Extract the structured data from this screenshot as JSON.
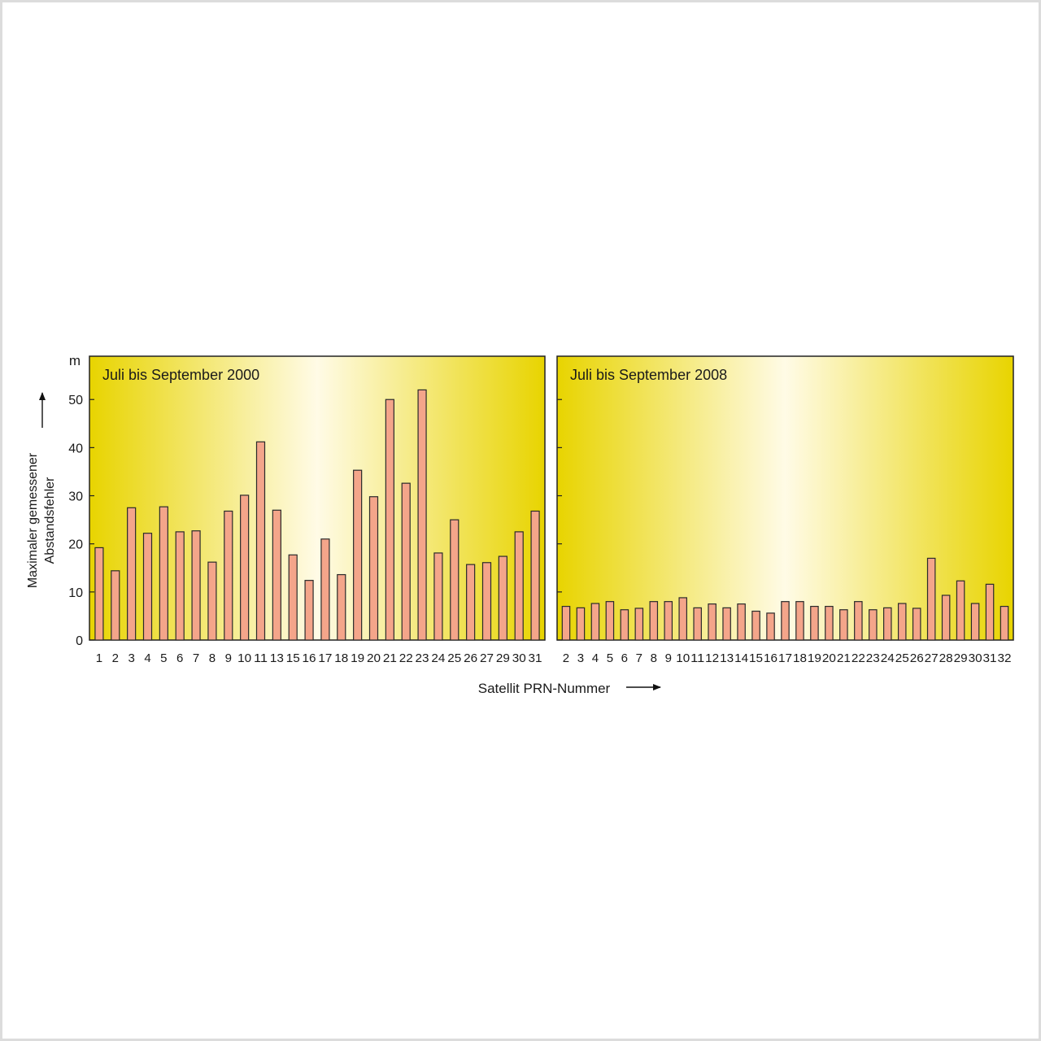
{
  "figure": {
    "y_axis_unit": "m",
    "y_axis_label_line1": "Maximaler gemessener",
    "y_axis_label_line2": "Abstandsfehler",
    "x_axis_label": "Satellit PRN-Nummer"
  },
  "colors": {
    "bar_fill": "#f4a58a",
    "bar_stroke": "#2a2a2a",
    "panel_edge": "#e8d400",
    "panel_center": "#fffbe6",
    "panel_border": "#222222"
  },
  "chart_data": [
    {
      "type": "bar",
      "title": "Juli bis September 2000",
      "xlabel": "Satellit PRN-Nummer",
      "ylabel": "Maximaler gemessener Abstandsfehler",
      "yunit": "m",
      "ylim": [
        0,
        59
      ],
      "yticks": [
        0,
        10,
        20,
        30,
        40,
        50
      ],
      "grid": false,
      "categories": [
        "1",
        "2",
        "3",
        "4",
        "5",
        "6",
        "7",
        "8",
        "9",
        "10",
        "11",
        "13",
        "15",
        "16",
        "17",
        "18",
        "19",
        "20",
        "21",
        "22",
        "23",
        "24",
        "25",
        "26",
        "27",
        "29",
        "30",
        "31"
      ],
      "values": [
        19.2,
        14.4,
        27.5,
        22.2,
        27.7,
        22.5,
        22.7,
        16.2,
        26.8,
        30.1,
        41.2,
        27.0,
        17.7,
        12.4,
        21.0,
        13.6,
        35.3,
        29.8,
        50.0,
        32.6,
        52.0,
        18.1,
        25.0,
        15.7,
        16.1,
        17.4,
        22.5,
        26.8
      ]
    },
    {
      "type": "bar",
      "title": "Juli bis September 2008",
      "xlabel": "Satellit PRN-Nummer",
      "ylabel": "Maximaler gemessener Abstandsfehler",
      "yunit": "m",
      "ylim": [
        0,
        59
      ],
      "yticks": [
        0,
        10,
        20,
        30,
        40,
        50
      ],
      "grid": false,
      "categories": [
        "2",
        "3",
        "4",
        "5",
        "6",
        "7",
        "8",
        "9",
        "10",
        "11",
        "12",
        "13",
        "14",
        "15",
        "16",
        "17",
        "18",
        "19",
        "20",
        "21",
        "22",
        "23",
        "24",
        "25",
        "26",
        "27",
        "28",
        "29",
        "30",
        "31",
        "32"
      ],
      "values": [
        7.0,
        6.7,
        7.6,
        8.0,
        6.3,
        6.6,
        8.0,
        8.0,
        8.8,
        6.7,
        7.5,
        6.7,
        7.5,
        6.0,
        5.6,
        8.0,
        8.0,
        7.0,
        7.0,
        6.3,
        8.0,
        6.3,
        6.7,
        7.6,
        6.6,
        17.0,
        9.3,
        12.3,
        7.6,
        11.6,
        7.0
      ]
    }
  ]
}
